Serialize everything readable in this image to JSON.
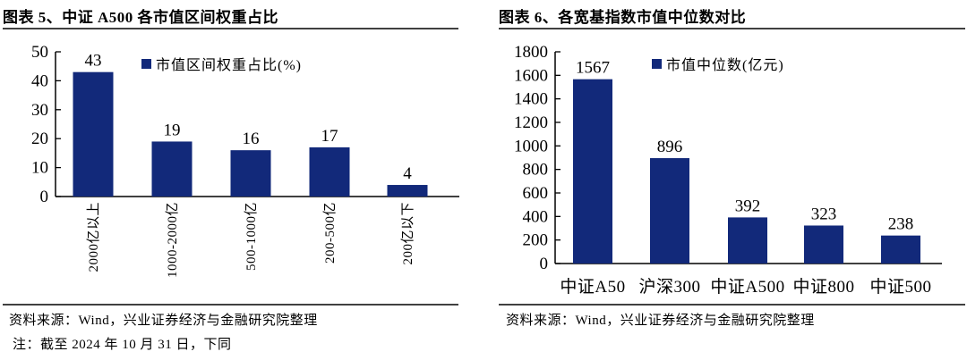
{
  "colors": {
    "bar": "#12297a",
    "axis": "#000000",
    "rule": "#404040",
    "text": "#000000"
  },
  "panels": [
    {
      "title": "图表 5、中证 A500 各市值区间权重占比",
      "source": "资料来源：Wind，兴业证券经济与金融研究院整理",
      "note": "注：截至 2024 年 10 月 31 日，下同"
    },
    {
      "title": "图表 6、各宽基指数市值中位数对比",
      "source": "资料来源：Wind，兴业证券经济与金融研究院整理"
    }
  ],
  "chart_data": [
    {
      "type": "bar",
      "title": "中证A500各市值区间权重占比",
      "legend": "市值区间权重占比(%)",
      "categories": [
        "2000亿以上",
        "1000-2000亿",
        "500-1000亿",
        "200-500亿",
        "200亿以下"
      ],
      "values": [
        43,
        19,
        16,
        17,
        4
      ],
      "ylim": [
        0,
        50
      ],
      "ytick_step": 10,
      "grid": false,
      "legend_position": "top-center",
      "bar_color": "#12297a",
      "x_label_rotation": -90
    },
    {
      "type": "bar",
      "title": "各宽基指数市值中位数对比",
      "legend": "市值中位数(亿元)",
      "categories": [
        "中证A50",
        "沪深300",
        "中证A500",
        "中证800",
        "中证500"
      ],
      "values": [
        1567,
        896,
        392,
        323,
        238
      ],
      "ylim": [
        0,
        1800
      ],
      "ytick_step": 200,
      "grid": false,
      "legend_position": "top-center",
      "bar_color": "#12297a",
      "x_label_rotation": 0
    }
  ]
}
